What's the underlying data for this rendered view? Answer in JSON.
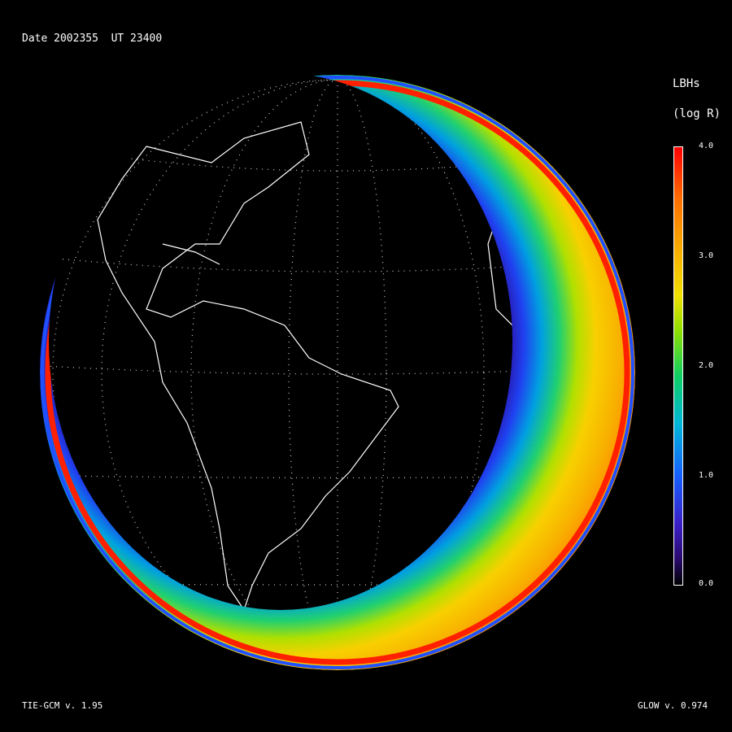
{
  "header": {
    "date_label": "Date 2002355  UT 23400"
  },
  "colorbar": {
    "title": "LBHs",
    "unit": "(log R)",
    "ticks": [
      "4.0",
      "3.0",
      "2.0",
      "1.0",
      "0.0"
    ],
    "range": [
      0.0,
      4.0
    ],
    "colors": [
      "#000000",
      "#3a20c8",
      "#1560ff",
      "#00b8d8",
      "#10d060",
      "#f0e000",
      "#ff7000",
      "#ff0000"
    ]
  },
  "footer": {
    "model_left": "TIE-GCM v. 1.95",
    "model_right": "GLOW v. 0.974"
  }
}
